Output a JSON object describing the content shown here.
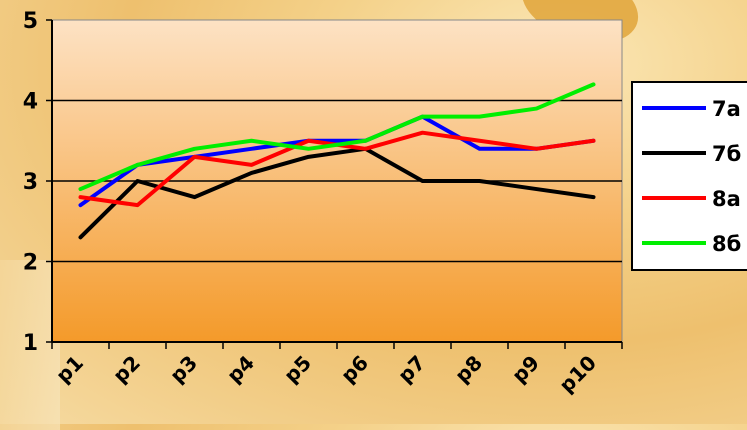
{
  "chart_data": {
    "type": "line",
    "categories": [
      "p1",
      "p2",
      "p3",
      "p4",
      "p5",
      "p6",
      "p7",
      "p8",
      "p9",
      "p10"
    ],
    "ylim": [
      1,
      5
    ],
    "yticks": [
      1,
      2,
      3,
      4,
      5
    ],
    "grid": "horizontal",
    "legend_position": "right",
    "series": [
      {
        "name": "7а",
        "color": "#0000ff",
        "values": [
          2.7,
          3.2,
          3.3,
          3.4,
          3.5,
          3.5,
          3.8,
          3.4,
          3.4,
          3.5
        ]
      },
      {
        "name": "7б",
        "color": "#000000",
        "values": [
          2.3,
          3.0,
          2.8,
          3.1,
          3.3,
          3.4,
          3.0,
          3.0,
          2.9,
          2.8
        ]
      },
      {
        "name": "8а",
        "color": "#ff0000",
        "values": [
          2.8,
          2.7,
          3.3,
          3.2,
          3.5,
          3.4,
          3.6,
          3.5,
          3.4,
          3.5
        ]
      },
      {
        "name": "8б",
        "color": "#00ee00",
        "values": [
          2.9,
          3.2,
          3.4,
          3.5,
          3.4,
          3.5,
          3.8,
          3.8,
          3.9,
          4.2
        ]
      }
    ]
  }
}
